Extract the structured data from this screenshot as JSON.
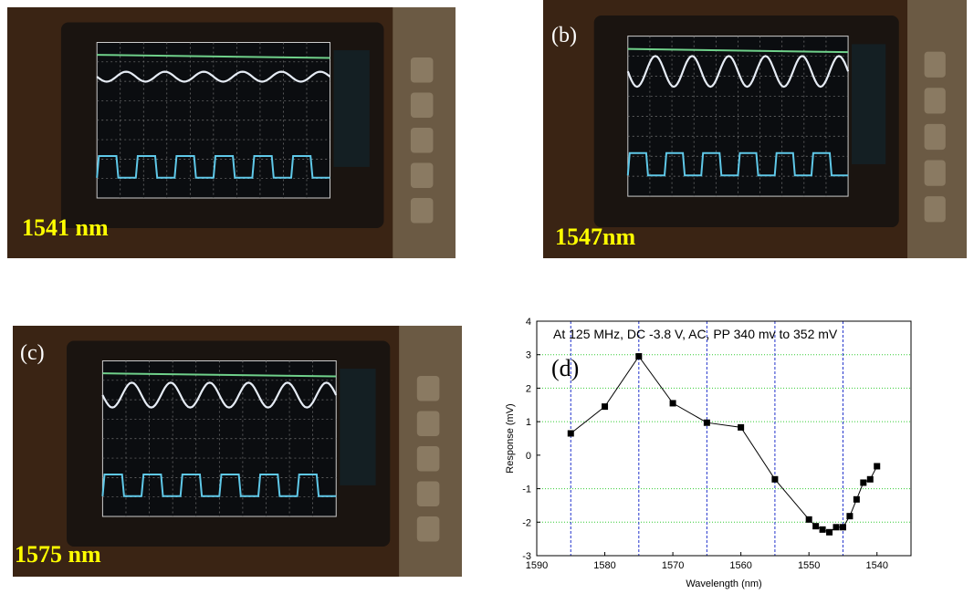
{
  "panel_a": {
    "label": "1541 nm"
  },
  "panel_b": {
    "tag": "(b)",
    "label": "1547nm"
  },
  "panel_c": {
    "tag": "(c)",
    "label": "1575 nm"
  },
  "chart_data": {
    "type": "line",
    "title": "At 125 MHz, DC -3.8 V, AC, PP 340 mv to 352 mV",
    "annotation": "(d)",
    "x_label": "Wavelength (nm)",
    "y_label": "Response (mV)",
    "x": [
      1585,
      1580,
      1575,
      1570,
      1565,
      1560,
      1555,
      1550,
      1549,
      1548,
      1547,
      1546,
      1545,
      1544,
      1543,
      1542,
      1541,
      1540
    ],
    "series": [
      {
        "color": "#000000",
        "values": [
          0.65,
          1.45,
          2.95,
          1.55,
          0.97,
          0.83,
          -0.72,
          -1.92,
          -2.12,
          -2.22,
          -2.3,
          -2.15,
          -2.15,
          -1.82,
          -1.32,
          -0.82,
          -0.72,
          -0.33
        ]
      }
    ],
    "xlim": [
      1590,
      1535
    ],
    "ylim": [
      -3,
      4
    ],
    "xticks": [
      1590,
      1580,
      1570,
      1560,
      1550,
      1540
    ],
    "yticks": [
      -3,
      -2,
      -1,
      0,
      1,
      2,
      3,
      4
    ],
    "xgrid": [
      1585,
      1575,
      1565,
      1555,
      1545
    ],
    "xgrid_color": "#2233cc",
    "ygrid": [
      -2,
      -1,
      1,
      2,
      3
    ],
    "ygrid_color": "#33cc33"
  }
}
